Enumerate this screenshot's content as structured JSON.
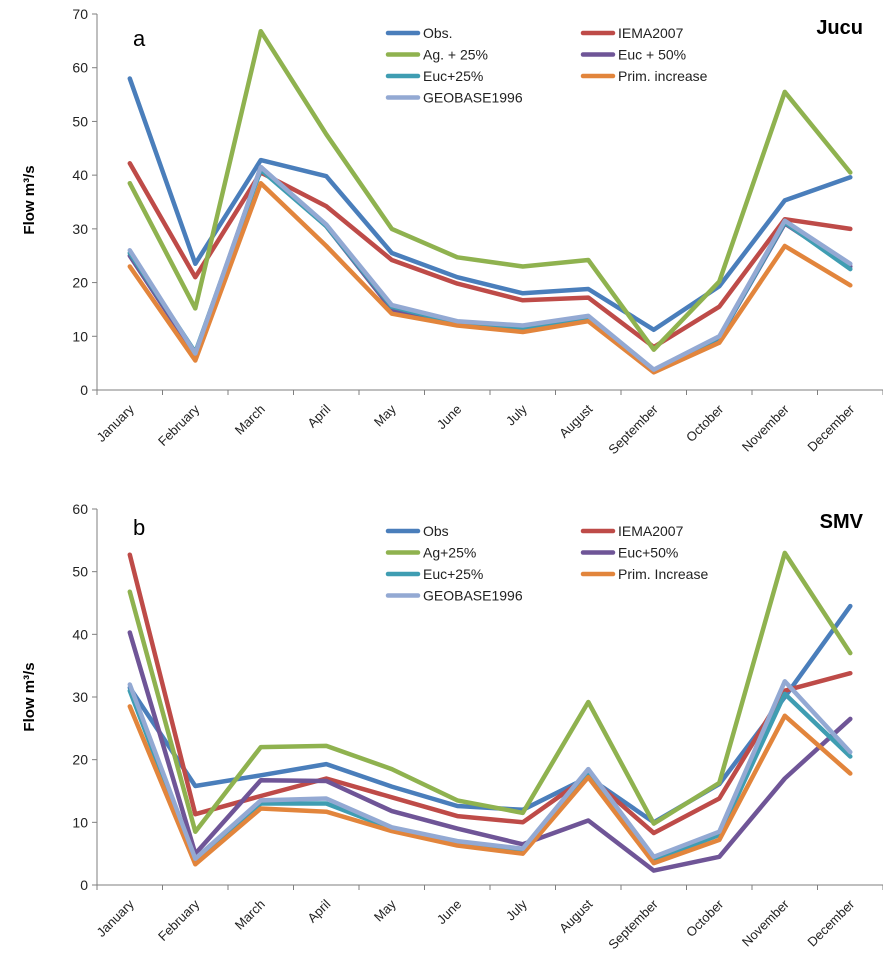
{
  "chart_data": [
    {
      "type": "line",
      "panel_label": "a",
      "title": "Jucu",
      "xlabel": "",
      "ylabel": "Flow m³/s",
      "ylim": [
        0,
        70
      ],
      "yticks": [
        0,
        10,
        20,
        30,
        40,
        50,
        60,
        70
      ],
      "grid": false,
      "legend_position": "top-center",
      "categories": [
        "January",
        "February",
        "March",
        "April",
        "May",
        "June",
        "July",
        "August",
        "September",
        "October",
        "November",
        "December"
      ],
      "series": [
        {
          "name": "Obs.",
          "color": "#4a7ebb",
          "values": [
            58,
            23.5,
            42.8,
            39.8,
            25.5,
            21,
            18,
            18.8,
            11.2,
            19.3,
            35.3,
            39.6
          ]
        },
        {
          "name": "IEMA2007",
          "color": "#be4b48",
          "values": [
            42.2,
            21,
            40.5,
            34.2,
            24.2,
            19.8,
            16.7,
            17.2,
            8,
            15.5,
            31.8,
            30
          ]
        },
        {
          "name": "Ag. + 25%",
          "color": "#8fb24f",
          "values": [
            38.5,
            15.2,
            66.8,
            47.6,
            30,
            24.7,
            23,
            24.2,
            7.5,
            20.2,
            55.5,
            40.5
          ]
        },
        {
          "name": "Euc + 50%",
          "color": "#6f5597",
          "values": [
            25,
            6.5,
            41.5,
            30.5,
            15,
            12.5,
            11.5,
            13.5,
            3.6,
            9.7,
            31,
            23
          ]
        },
        {
          "name": "Euc+25%",
          "color": "#3f9db2",
          "values": [
            25.5,
            7,
            41,
            30.5,
            15.5,
            12.5,
            11.5,
            13.5,
            3.7,
            9.8,
            31.2,
            22.5
          ]
        },
        {
          "name": "Prim. increase",
          "color": "#e2853c",
          "values": [
            23,
            5.5,
            38.5,
            26.8,
            14.2,
            12,
            10.8,
            12.8,
            3.3,
            8.8,
            26.8,
            19.5
          ]
        },
        {
          "name": "GEOBASE1996",
          "color": "#93a9d3",
          "values": [
            26,
            6.8,
            41.5,
            30.8,
            15.8,
            12.8,
            12,
            13.8,
            3.8,
            10,
            31.5,
            23.5
          ]
        }
      ]
    },
    {
      "type": "line",
      "panel_label": "b",
      "title": "SMV",
      "xlabel": "",
      "ylabel": "Flow m³/s",
      "ylim": [
        0,
        60
      ],
      "yticks": [
        0,
        10,
        20,
        30,
        40,
        50,
        60
      ],
      "grid": false,
      "legend_position": "top-center",
      "categories": [
        "January",
        "February",
        "March",
        "April",
        "May",
        "June",
        "July",
        "August",
        "September",
        "October",
        "November",
        "December"
      ],
      "series": [
        {
          "name": "Obs",
          "color": "#4a7ebb",
          "values": [
            31.5,
            15.8,
            17.5,
            19.3,
            15.7,
            12.6,
            12,
            17.2,
            10,
            16.1,
            30,
            44.5
          ]
        },
        {
          "name": "IEMA2007",
          "color": "#be4b48",
          "values": [
            52.7,
            11.3,
            14.2,
            17,
            14,
            11,
            10,
            17.4,
            8.3,
            13.8,
            31,
            33.8
          ]
        },
        {
          "name": "Ag+25%",
          "color": "#8fb24f",
          "values": [
            46.8,
            8.5,
            22,
            22.2,
            18.5,
            13.5,
            11.5,
            29.2,
            9.8,
            16.3,
            53,
            37
          ]
        },
        {
          "name": "Euc+50%",
          "color": "#6f5597",
          "values": [
            40.3,
            5,
            16.7,
            16.6,
            11.8,
            9,
            6.5,
            10.3,
            2.3,
            4.5,
            17,
            26.5
          ]
        },
        {
          "name": "Euc+25%",
          "color": "#3f9db2",
          "values": [
            31,
            3.8,
            13,
            13,
            9,
            6.8,
            5.5,
            18,
            4,
            8,
            30.5,
            20.5
          ]
        },
        {
          "name": "Prim. Increase",
          "color": "#e2853c",
          "values": [
            28.5,
            3.3,
            12.2,
            11.7,
            8.6,
            6.3,
            5,
            17.2,
            3.5,
            7.2,
            27,
            17.8
          ]
        },
        {
          "name": "GEOBASE1996",
          "color": "#93a9d3",
          "values": [
            32,
            4.2,
            13.5,
            13.8,
            9.2,
            7,
            5.8,
            18.5,
            4.5,
            8.5,
            32.5,
            21.2
          ]
        }
      ]
    }
  ]
}
